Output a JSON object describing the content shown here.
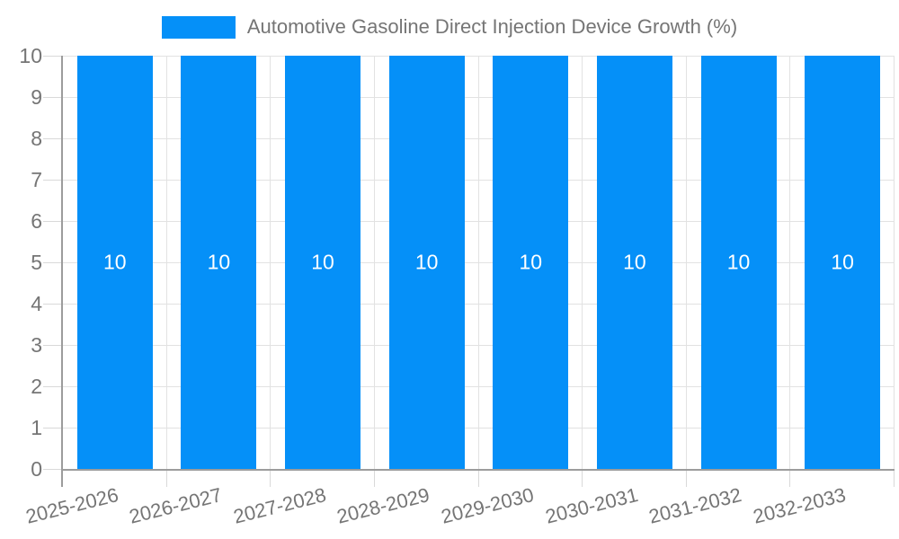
{
  "chart_data": {
    "type": "bar",
    "title": "Automotive Gasoline Direct Injection Device Growth (%)",
    "categories": [
      "2025-2026",
      "2026-2027",
      "2027-2028",
      "2028-2029",
      "2029-2030",
      "2030-2031",
      "2031-2032",
      "2032-2033"
    ],
    "values": [
      10,
      10,
      10,
      10,
      10,
      10,
      10,
      10
    ],
    "bar_labels": [
      "10",
      "10",
      "10",
      "10",
      "10",
      "10",
      "10",
      "10"
    ],
    "xlabel": "",
    "ylabel": "",
    "ylim": [
      0,
      10
    ],
    "yticks": [
      0,
      1,
      2,
      3,
      4,
      5,
      6,
      7,
      8,
      9,
      10
    ],
    "grid": true,
    "legend_position": "top",
    "colors": {
      "bar": "#0590f8",
      "bar_label": "#ffffff",
      "axis_text": "#757575",
      "axis_line": "#9c9c9c",
      "gridline": "#e2e2e2",
      "tick": "#d9d9d9",
      "background": "#ffffff"
    }
  }
}
